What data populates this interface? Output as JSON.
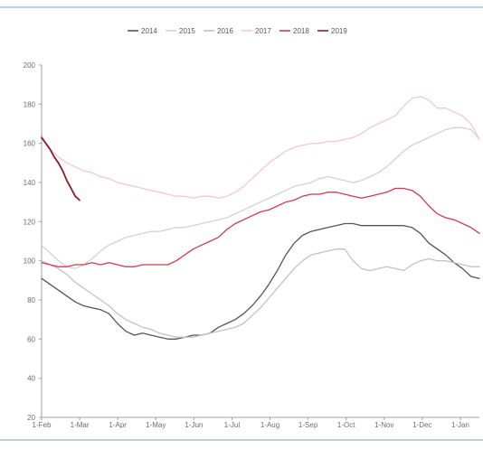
{
  "colors": {
    "frame": "#b8cfe0",
    "axis": "#a0a0a0"
  },
  "chart_data": {
    "type": "line",
    "title": "",
    "xlabel": "",
    "ylabel": "",
    "ylim": [
      20,
      200
    ],
    "yticks": [
      20,
      40,
      60,
      80,
      100,
      120,
      140,
      160,
      180,
      200
    ],
    "xlim": [
      0,
      52
    ],
    "xtick_labels": [
      "1-Feb",
      "1-Mar",
      "1-Apr",
      "1-May",
      "1-Jun",
      "1-Jul",
      "1-Aug",
      "1-Sep",
      "1-Oct",
      "1-Nov",
      "1-Dec",
      "1-Jan"
    ],
    "grid": false,
    "legend_position": "top-center",
    "series": [
      {
        "name": "2014",
        "color": "#555555",
        "x": [
          0,
          1,
          2,
          3,
          4,
          5,
          6,
          7,
          8,
          9,
          10,
          11,
          12,
          13,
          14,
          15,
          16,
          17,
          18,
          19,
          20,
          21,
          22,
          23,
          24,
          25,
          26,
          27,
          28,
          29,
          30,
          31,
          32,
          33,
          34,
          35,
          36,
          37,
          38,
          39,
          40,
          41,
          42,
          43,
          44,
          45,
          46,
          47,
          48,
          49,
          50,
          51,
          52
        ],
        "values": [
          91,
          88,
          85,
          82,
          79,
          77,
          76,
          75,
          73,
          68,
          64,
          62,
          63,
          62,
          61,
          60,
          60,
          61,
          62,
          62,
          63,
          66,
          68,
          70,
          73,
          77,
          82,
          88,
          95,
          103,
          109,
          113,
          115,
          116,
          117,
          118,
          119,
          119,
          118,
          118,
          118,
          118,
          118,
          118,
          117,
          114,
          109,
          106,
          103,
          99,
          96,
          92,
          91
        ]
      },
      {
        "name": "2015",
        "color": "#d2d2d2",
        "x": [
          0,
          1,
          2,
          3,
          4,
          5,
          6,
          7,
          8,
          9,
          10,
          11,
          12,
          13,
          14,
          15,
          16,
          17,
          18,
          19,
          20,
          21,
          22,
          23,
          24,
          25,
          26,
          27,
          28,
          29,
          30,
          31,
          32,
          33,
          34,
          35,
          36,
          37,
          38,
          39,
          40,
          41,
          42,
          43,
          44,
          45,
          46,
          47,
          48,
          49,
          50,
          51,
          52
        ],
        "values": [
          108,
          104,
          100,
          97,
          96,
          98,
          101,
          105,
          108,
          110,
          112,
          113,
          114,
          115,
          115,
          116,
          117,
          117,
          118,
          119,
          120,
          121,
          122,
          124,
          126,
          128,
          130,
          132,
          134,
          136,
          138,
          139,
          140,
          142,
          143,
          142,
          141,
          140,
          141,
          143,
          145,
          148,
          152,
          156,
          159,
          161,
          163,
          165,
          167,
          168,
          168,
          167,
          162
        ]
      },
      {
        "name": "2016",
        "color": "#c2c2c2",
        "x": [
          0,
          1,
          2,
          3,
          4,
          5,
          6,
          7,
          8,
          9,
          10,
          11,
          12,
          13,
          14,
          15,
          16,
          17,
          18,
          19,
          20,
          21,
          22,
          23,
          24,
          25,
          26,
          27,
          28,
          29,
          30,
          31,
          32,
          33,
          34,
          35,
          36,
          37,
          38,
          39,
          40,
          41,
          42,
          43,
          44,
          45,
          46,
          47,
          48,
          49,
          50,
          51,
          52
        ],
        "values": [
          100,
          98,
          96,
          93,
          89,
          86,
          83,
          80,
          77,
          73,
          70,
          68,
          66,
          65,
          63,
          62,
          61,
          61,
          61,
          62,
          63,
          64,
          65,
          66,
          68,
          72,
          76,
          81,
          86,
          91,
          96,
          100,
          103,
          104,
          105,
          106,
          106,
          100,
          96,
          95,
          96,
          97,
          96,
          95,
          98,
          100,
          101,
          100,
          100,
          99,
          98,
          97,
          97
        ]
      },
      {
        "name": "2017",
        "color": "#f5c8cf",
        "x": [
          0,
          1,
          2,
          3,
          4,
          5,
          6,
          7,
          8,
          9,
          10,
          11,
          12,
          13,
          14,
          15,
          16,
          17,
          18,
          19,
          20,
          21,
          22,
          23,
          24,
          25,
          26,
          27,
          28,
          29,
          30,
          31,
          32,
          33,
          34,
          35,
          36,
          37,
          38,
          39,
          40,
          41,
          42,
          43,
          44,
          45,
          46,
          47,
          48,
          49,
          50,
          51,
          52
        ],
        "values": [
          163,
          157,
          153,
          150,
          148,
          146,
          145,
          143,
          142,
          140,
          139,
          138,
          137,
          136,
          135,
          134,
          133,
          133,
          132,
          133,
          133,
          132,
          133,
          135,
          138,
          142,
          146,
          150,
          153,
          156,
          158,
          159,
          160,
          160,
          161,
          161,
          162,
          163,
          165,
          168,
          170,
          172,
          174,
          179,
          183,
          184,
          182,
          178,
          178,
          176,
          174,
          170,
          162
        ]
      },
      {
        "name": "2018",
        "color": "#d23a4f",
        "x": [
          0,
          1,
          2,
          3,
          4,
          5,
          6,
          7,
          8,
          9,
          10,
          11,
          12,
          13,
          14,
          15,
          16,
          17,
          18,
          19,
          20,
          21,
          22,
          23,
          24,
          25,
          26,
          27,
          28,
          29,
          30,
          31,
          32,
          33,
          34,
          35,
          36,
          37,
          38,
          39,
          40,
          41,
          42,
          43,
          44,
          45,
          46,
          47,
          48,
          49,
          50,
          51,
          52
        ],
        "values": [
          99,
          98,
          97,
          97,
          98,
          98,
          99,
          98,
          99,
          98,
          97,
          97,
          98,
          98,
          98,
          98,
          100,
          103,
          106,
          108,
          110,
          112,
          116,
          119,
          121,
          123,
          125,
          126,
          128,
          130,
          131,
          133,
          134,
          134,
          135,
          135,
          134,
          133,
          132,
          133,
          134,
          135,
          137,
          137,
          136,
          133,
          128,
          124,
          122,
          121,
          119,
          117,
          114
        ]
      },
      {
        "name": "2019",
        "color": "#8a1c2c",
        "x": [
          0,
          0.5,
          1,
          1.5,
          2,
          2.5,
          3,
          3.5,
          4,
          4.5
        ],
        "values": [
          163,
          160,
          157,
          153,
          150,
          146,
          141,
          137,
          133,
          131
        ]
      }
    ]
  }
}
